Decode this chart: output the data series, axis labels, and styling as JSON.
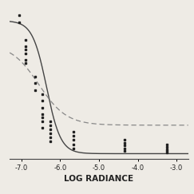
{
  "xlim": [
    -7.3,
    -2.7
  ],
  "ylim": [
    -0.03,
    1.1
  ],
  "xlabel": "LOG RADIANCE",
  "xticks": [
    -7.0,
    -6.0,
    -5.0,
    -4.0,
    -3.0
  ],
  "xtick_labels": [
    "-7.0",
    "-6.0",
    "-5.0",
    "-4.0",
    "-3.0"
  ],
  "background_color": "#eeebe5",
  "solid_line_color": "#444444",
  "dotted_line_color": "#888888",
  "dot_color": "#222222",
  "solid_curve": {
    "midpoint": -6.35,
    "slope": 5.5,
    "amplitude": 0.98,
    "baseline": 0.01
  },
  "dotted_curve": {
    "midpoint": -6.55,
    "slope": 2.8,
    "amplitude": 0.6,
    "baseline": 0.22
  },
  "scatter_clusters": [
    {
      "x": -7.05,
      "y_values": [
        0.98,
        1.03
      ]
    },
    {
      "x": -6.9,
      "y_values": [
        0.7,
        0.75,
        0.8,
        0.85,
        0.78,
        0.68
      ]
    },
    {
      "x": -6.65,
      "y_values": [
        0.48,
        0.53,
        0.58
      ]
    },
    {
      "x": -6.45,
      "y_values": [
        0.35,
        0.3,
        0.25,
        0.4,
        0.45,
        0.2,
        0.28
      ]
    },
    {
      "x": -6.25,
      "y_values": [
        0.13,
        0.16,
        0.19,
        0.22,
        0.25,
        0.1
      ]
    },
    {
      "x": -5.65,
      "y_values": [
        0.05,
        0.08,
        0.11,
        0.14,
        0.17
      ]
    },
    {
      "x": -4.35,
      "y_values": [
        0.03,
        0.05,
        0.07,
        0.09,
        0.11
      ]
    },
    {
      "x": -3.25,
      "y_values": [
        0.02,
        0.04,
        0.06,
        0.08,
        0.03
      ]
    }
  ]
}
